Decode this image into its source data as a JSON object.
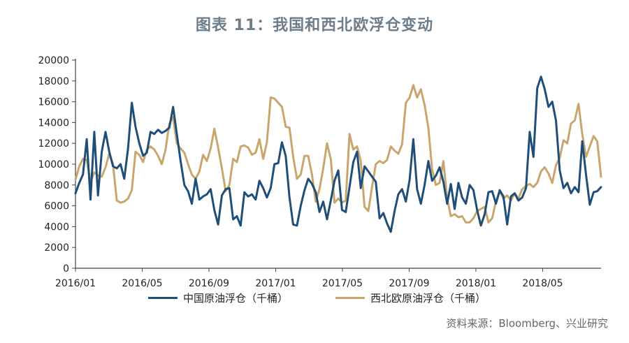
{
  "title": "图表 11：我国和西北欧浮仓变动",
  "source": "资料来源：Bloomberg、兴业研究",
  "colors": {
    "series1": "#1f4e79",
    "series2": "#c8a66e",
    "axis": "#444444"
  },
  "chart_data": {
    "type": "line",
    "title": "图表 11：我国和西北欧浮仓变动",
    "xlabel": "",
    "ylabel": "",
    "ylim": [
      0,
      20000
    ],
    "yticks": [
      0,
      2000,
      4000,
      6000,
      8000,
      10000,
      12000,
      14000,
      16000,
      18000,
      20000
    ],
    "xlim": [
      "2016-01",
      "2018-08"
    ],
    "xticks": [
      "2016/01",
      "2016/05",
      "2016/09",
      "2017/01",
      "2017/05",
      "2017/09",
      "2018/01",
      "2018/05"
    ],
    "grid": false,
    "legend": "bottom",
    "series": [
      {
        "name": "中国原油浮仓（千桶）",
        "values": [
          7200,
          8200,
          9000,
          12400,
          6600,
          13100,
          7000,
          11200,
          13100,
          11200,
          9800,
          9600,
          10000,
          8600,
          11500,
          15900,
          13600,
          12000,
          10800,
          11100,
          13100,
          12900,
          13300,
          13000,
          13200,
          13500,
          15500,
          12900,
          10300,
          8000,
          7400,
          6200,
          8600,
          6600,
          6900,
          7100,
          7600,
          5600,
          4200,
          7000,
          7600,
          7700,
          4700,
          5000,
          4100,
          7300,
          6900,
          7100,
          6600,
          8400,
          7700,
          6800,
          7700,
          10000,
          10100,
          12100,
          10800,
          6800,
          4200,
          4100,
          6000,
          7500,
          8600,
          8100,
          7300,
          5400,
          6400,
          4700,
          6500,
          8400,
          9400,
          5600,
          5400,
          7800,
          10200,
          11200,
          7700,
          9800,
          9300,
          8800,
          8300,
          4800,
          5300,
          4300,
          3500,
          5500,
          7100,
          7600,
          6400,
          8500,
          12400,
          7600,
          6200,
          8000,
          10300,
          8400,
          8900,
          9700,
          8300,
          6200,
          8100,
          5700,
          8200,
          6800,
          6200,
          8000,
          7500,
          5600,
          4100,
          5200,
          7300,
          7400,
          6200,
          7500,
          6900,
          4200,
          6900,
          7200,
          6500,
          6800,
          7700,
          13100,
          10700,
          17300,
          18400,
          17200,
          15500,
          16000,
          14200,
          9400,
          7700,
          8200,
          7200,
          7800,
          7300,
          12200,
          9000,
          6100,
          7300,
          7400,
          7800
        ]
      },
      {
        "name": "西北欧原油浮仓（千桶）",
        "values": [
          8500,
          9800,
          10500,
          10400,
          8300,
          9200,
          8900,
          8800,
          9700,
          11000,
          10000,
          6500,
          6300,
          6400,
          6700,
          7500,
          11200,
          10900,
          10200,
          11400,
          11700,
          11400,
          10800,
          10000,
          11400,
          13900,
          14500,
          12000,
          11500,
          11100,
          10000,
          9000,
          8600,
          9300,
          10900,
          10300,
          11500,
          13400,
          11600,
          9600,
          7400,
          8000,
          10500,
          10200,
          11700,
          11800,
          11600,
          10900,
          11100,
          12400,
          10500,
          12100,
          16400,
          16300,
          15900,
          15500,
          13600,
          13500,
          10700,
          8600,
          9000,
          10800,
          10800,
          9000,
          6400,
          7600,
          9600,
          12000,
          10500,
          6300,
          6700,
          6300,
          6500,
          12900,
          11400,
          11700,
          10300,
          5900,
          5500,
          7800,
          10000,
          10300,
          10100,
          10400,
          11700,
          11300,
          11000,
          11900,
          15900,
          16400,
          17600,
          16400,
          17200,
          15700,
          13500,
          9500,
          8000,
          8200,
          10300,
          6700,
          5000,
          5200,
          4900,
          5000,
          4400,
          4400,
          4800,
          5500,
          5700,
          5900,
          4400,
          4800,
          6400,
          7400,
          6700,
          7000,
          6500,
          7200,
          6700,
          7600,
          7900,
          8100,
          7800,
          8200,
          9300,
          9700,
          9100,
          8200,
          9900,
          10600,
          12300,
          12000,
          13900,
          14200,
          15800,
          12900,
          10700,
          11700,
          12700,
          12200,
          8800
        ]
      }
    ]
  }
}
